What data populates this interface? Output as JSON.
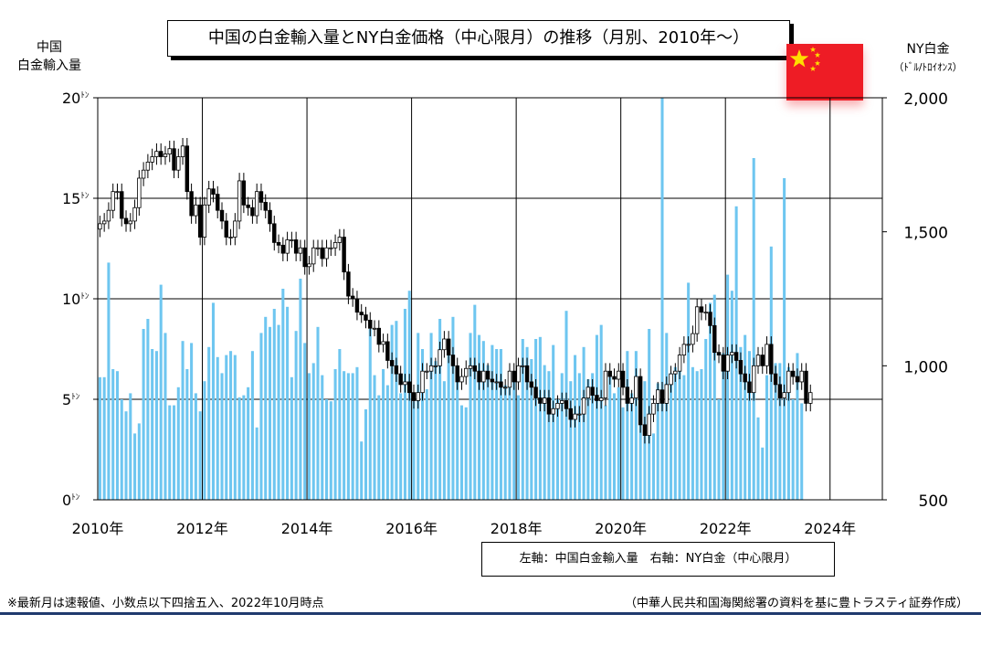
{
  "title": "中国の白金輸入量とNY白金価格（中心限月）の推移（月別、2010年～）",
  "left_axis_title": [
    "中国",
    "白金輸入量"
  ],
  "right_axis_title": [
    "NY白金",
    "（ﾄﾞﾙ/ﾄﾛｲｵﾝｽ）"
  ],
  "legend": "左軸：中国白金輸入量　右軸：NY白金（中心限月）",
  "note_left": "※最新月は速報値、小数点以下四捨五入、2022年10月時点",
  "note_right": "（中華人民共和国海関総署の資料を基に豊トラスティ証券作成）",
  "colors": {
    "bar": "#6ec6f0",
    "flag": "#ee1c25",
    "star": "#ffde00",
    "candle_up": "#ffffff",
    "candle_down": "#000000"
  },
  "chart_data": {
    "type": "bar",
    "x_ticks": [
      "2010年",
      "2012年",
      "2014年",
      "2016年",
      "2018年",
      "2020年",
      "2022年",
      "2024年"
    ],
    "left_axis": {
      "label": "中国白金輸入量",
      "ticks": [
        "0ﾄﾝ",
        "5ﾄﾝ",
        "10ﾄﾝ",
        "15ﾄﾝ",
        "20ﾄﾝ"
      ],
      "ylim": [
        0,
        20
      ]
    },
    "right_axis": {
      "label": "NY白金（中心限月）",
      "ticks": [
        "500",
        "1,000",
        "1,500",
        "2,000"
      ],
      "ylim": [
        500,
        2000
      ]
    },
    "xlim": [
      "2010-01",
      "2024-12"
    ],
    "series": [
      {
        "name": "中国白金輸入量",
        "type": "bar",
        "unit": "ﾄﾝ",
        "start": "2010-01",
        "values": [
          6.1,
          6.1,
          11.8,
          6.5,
          6.4,
          5.0,
          4.4,
          5.3,
          3.3,
          3.8,
          8.5,
          9.0,
          7.5,
          7.4,
          10.7,
          8.3,
          4.7,
          4.7,
          5.6,
          7.9,
          6.5,
          7.8,
          5.3,
          4.4,
          5.9,
          7.6,
          9.8,
          7.1,
          6.3,
          7.2,
          7.4,
          7.2,
          5.1,
          5.2,
          5.6,
          7.4,
          3.6,
          8.3,
          9.1,
          8.6,
          9.5,
          8.7,
          10.5,
          9.6,
          6.1,
          8.4,
          11.0,
          7.8,
          6.3,
          6.8,
          8.6,
          6.2,
          5.0,
          4.9,
          6.5,
          7.5,
          6.4,
          6.3,
          6.3,
          6.6,
          2.9,
          4.5,
          8.5,
          6.2,
          5.2,
          6.5,
          5.7,
          8.7,
          8.9,
          5.3,
          9.5,
          10.4,
          4.9,
          8.3,
          7.5,
          5.5,
          8.3,
          6.9,
          9.0,
          5.9,
          7.4,
          9.1,
          5.9,
          4.7,
          4.6,
          8.3,
          9.7,
          8.2,
          7.9,
          6.7,
          7.7,
          7.5,
          7.5,
          5.7,
          5.8,
          6.2,
          5.2,
          8.0,
          7.6,
          7.0,
          8.0,
          8.1,
          6.7,
          6.4,
          7.7,
          5.0,
          6.3,
          9.4,
          5.9,
          7.2,
          6.3,
          7.6,
          6.0,
          6.3,
          8.2,
          8.7,
          4.7,
          6.1,
          5.3,
          5.6,
          4.6,
          7.4,
          5.3,
          7.4,
          5.3,
          5.9,
          8.5,
          3.3,
          5.8,
          20.0,
          8.3,
          6.3,
          6.6,
          6.6,
          6.2,
          10.8,
          6.6,
          6.4,
          6.5,
          8.0,
          9.8,
          10.2,
          5.0,
          7.3,
          11.2,
          10.4,
          14.6,
          7.6,
          8.2,
          7.4,
          17.0,
          4.1,
          2.6,
          6.2,
          12.6,
          6.8,
          6.8,
          16.0,
          6.6,
          5.0,
          7.3,
          4.8
        ]
      },
      {
        "name": "NY白金（中心限月）",
        "type": "line",
        "unit": "ﾄﾞﾙ/ﾄﾛｲｵﾝｽ",
        "start": "2010-01",
        "values": [
          1530,
          1540,
          1580,
          1650,
          1650,
          1550,
          1530,
          1540,
          1590,
          1700,
          1730,
          1760,
          1780,
          1800,
          1780,
          1790,
          1810,
          1730,
          1780,
          1820,
          1650,
          1560,
          1600,
          1480,
          1600,
          1660,
          1640,
          1580,
          1540,
          1480,
          1480,
          1540,
          1690,
          1600,
          1590,
          1560,
          1650,
          1610,
          1580,
          1530,
          1460,
          1450,
          1420,
          1470,
          1470,
          1420,
          1440,
          1370,
          1380,
          1440,
          1440,
          1400,
          1440,
          1440,
          1460,
          1480,
          1350,
          1260,
          1250,
          1200,
          1190,
          1170,
          1140,
          1140,
          1080,
          1090,
          1020,
          1000,
          970,
          930,
          940,
          900,
          870,
          900,
          980,
          980,
          1000,
          1000,
          1060,
          1100,
          1040,
          1000,
          940,
          960,
          990,
          1000,
          980,
          940,
          980,
          950,
          940,
          940,
          920,
          920,
          980,
          940,
          1000,
          1000,
          940,
          920,
          880,
          860,
          880,
          820,
          840,
          860,
          870,
          840,
          800,
          820,
          820,
          880,
          920,
          890,
          870,
          880,
          980,
          960,
          950,
          980,
          920,
          860,
          880,
          960,
          780,
          740,
          820,
          860,
          910,
          860,
          930,
          970,
          980,
          1040,
          1080,
          1080,
          1120,
          1220,
          1200,
          1200,
          1150,
          1050,
          1040,
          980,
          1040,
          1050,
          1020,
          970,
          940,
          900,
          1000,
          1040,
          1000,
          1080,
          970,
          930,
          880,
          900,
          980,
          960,
          940,
          980,
          860,
          900
        ]
      }
    ]
  }
}
